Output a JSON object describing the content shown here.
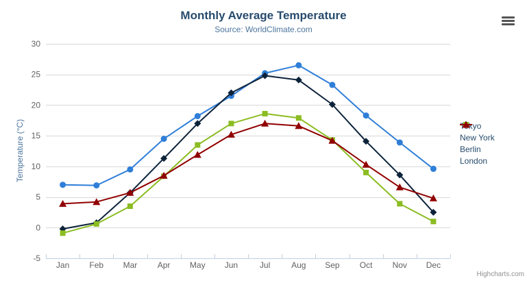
{
  "chart_data": {
    "type": "line",
    "title": "Monthly Average Temperature",
    "subtitle": "Source: WorldClimate.com",
    "xlabel": "",
    "ylabel": "Temperature (°C)",
    "ylim": [
      -5,
      30
    ],
    "yticks": [
      -5,
      0,
      5,
      10,
      15,
      20,
      25,
      30
    ],
    "grid": true,
    "legend_position": "right",
    "categories": [
      "Jan",
      "Feb",
      "Mar",
      "Apr",
      "May",
      "Jun",
      "Jul",
      "Aug",
      "Sep",
      "Oct",
      "Nov",
      "Dec"
    ],
    "series": [
      {
        "name": "Tokyo",
        "color": "#2f7ed8",
        "marker": "circle",
        "values": [
          7.0,
          6.9,
          9.5,
          14.5,
          18.2,
          21.5,
          25.2,
          26.5,
          23.3,
          18.3,
          13.9,
          9.6
        ]
      },
      {
        "name": "New York",
        "color": "#0d233a",
        "marker": "diamond",
        "values": [
          -0.2,
          0.8,
          5.7,
          11.3,
          17.0,
          22.0,
          24.8,
          24.1,
          20.1,
          14.1,
          8.6,
          2.5
        ]
      },
      {
        "name": "Berlin",
        "color": "#8bbc21",
        "marker": "square",
        "values": [
          -0.9,
          0.6,
          3.5,
          8.4,
          13.5,
          17.0,
          18.6,
          17.9,
          14.3,
          9.0,
          3.9,
          1.0
        ]
      },
      {
        "name": "London",
        "color": "#910000",
        "marker": "triangle",
        "values": [
          3.9,
          4.2,
          5.7,
          8.5,
          11.9,
          15.2,
          17.0,
          16.6,
          14.2,
          10.3,
          6.6,
          4.8
        ]
      }
    ],
    "colors": {
      "title": "#274b6d",
      "subtitle": "#4d759e",
      "axis_title": "#4d759e",
      "axis_labels": "#606060",
      "gridline": "#d8d8d8",
      "axis_line": "#c0d0e0",
      "legend_text": "#274b6d",
      "credit_text": "#909090"
    }
  },
  "credit": {
    "label": "Highcharts.com"
  }
}
